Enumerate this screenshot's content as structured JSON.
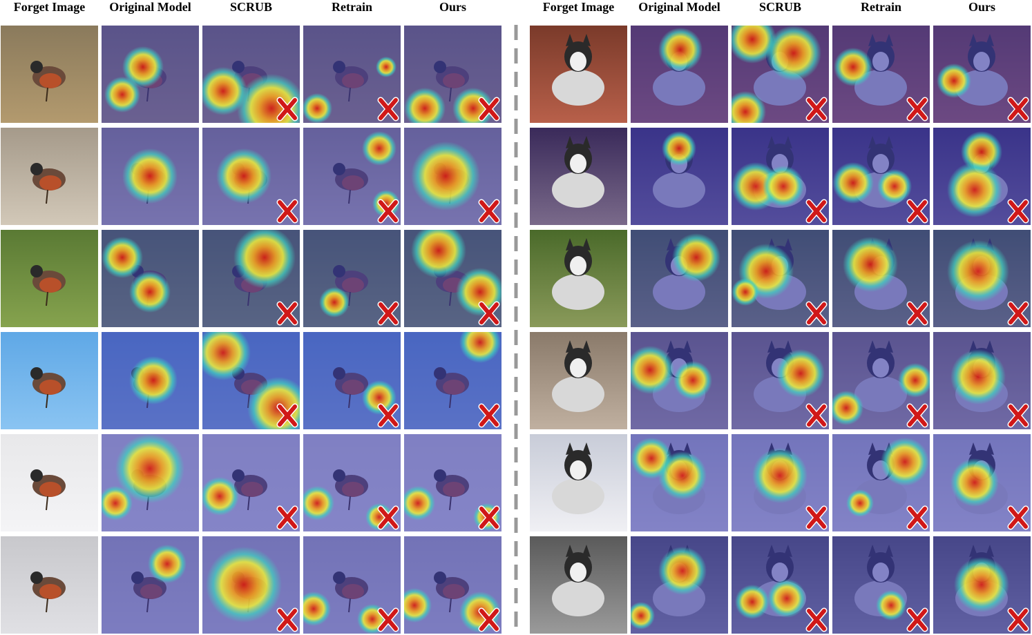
{
  "headers": {
    "left": [
      "Forget Image",
      "Original Model",
      "SCRUB",
      "Retrain",
      "Ours"
    ],
    "right": [
      "Forget Image",
      "Original Model",
      "SCRUB",
      "Retrain",
      "Ours"
    ]
  },
  "colors": {
    "overlay_blue": "#3a3aa8",
    "mark_red": "#d01818",
    "divider": "#999999"
  },
  "panels": {
    "left": {
      "subject": "robin",
      "rows": [
        {
          "bg": [
            "#8a7a5c",
            "#b39a6e"
          ],
          "marks": {
            "scrub": true,
            "retrain": true,
            "ours": true
          }
        },
        {
          "bg": [
            "#a59a8a",
            "#d2c8b8"
          ],
          "marks": {
            "scrub": true,
            "retrain": true,
            "ours": true
          }
        },
        {
          "bg": [
            "#5a7a34",
            "#86a34e"
          ],
          "marks": {
            "scrub": true,
            "retrain": true,
            "ours": true
          }
        },
        {
          "bg": [
            "#5fa8e6",
            "#8ac4f2"
          ],
          "marks": {
            "scrub": true,
            "retrain": true,
            "ours": true
          }
        },
        {
          "bg": [
            "#e8e8ea",
            "#f4f4f6"
          ],
          "marks": {
            "scrub": true,
            "retrain": true,
            "ours": true
          }
        },
        {
          "bg": [
            "#c8c8cc",
            "#e0e0e4"
          ],
          "marks": {
            "scrub": true,
            "retrain": true,
            "ours": true
          }
        }
      ]
    },
    "right": {
      "subject": "husky",
      "rows": [
        {
          "bg": [
            "#7a3a2a",
            "#b8604a"
          ],
          "marks": {
            "scrub": true,
            "retrain": true,
            "ours": true
          }
        },
        {
          "bg": [
            "#3a2a5a",
            "#7a6a8a"
          ],
          "marks": {
            "scrub": true,
            "retrain": true,
            "ours": true
          }
        },
        {
          "bg": [
            "#4a6a2a",
            "#8a9a5a"
          ],
          "marks": {
            "scrub": true,
            "retrain": true,
            "ours": true
          }
        },
        {
          "bg": [
            "#8a7a6a",
            "#c0b0a0"
          ],
          "marks": {
            "scrub": true,
            "retrain": true,
            "ours": true
          }
        },
        {
          "bg": [
            "#c8ccd8",
            "#f0f0f4"
          ],
          "marks": {
            "scrub": true,
            "retrain": true,
            "ours": true
          }
        },
        {
          "bg": [
            "#5a5a5a",
            "#9a9a9a"
          ],
          "marks": {
            "scrub": true,
            "retrain": true,
            "ours": true
          }
        }
      ]
    }
  }
}
